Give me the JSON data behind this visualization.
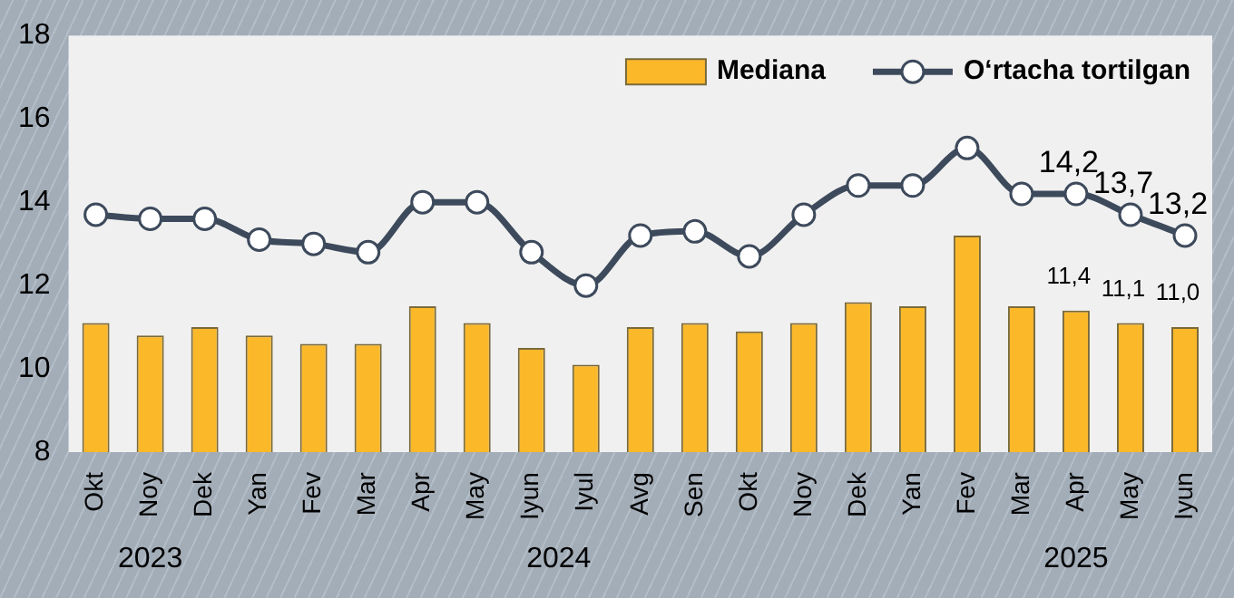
{
  "chart_data": {
    "type": "bar",
    "categories": [
      "Okt",
      "Noy",
      "Dek",
      "Yan",
      "Fev",
      "Mar",
      "Apr",
      "May",
      "Iyun",
      "Iyul",
      "Avg",
      "Sen",
      "Okt",
      "Noy",
      "Dek",
      "Yan",
      "Fev",
      "Mar",
      "Apr",
      "May",
      "Iyun"
    ],
    "series": [
      {
        "name": "Mediana",
        "color": "#fbb829",
        "values": [
          11.1,
          10.8,
          11.0,
          10.8,
          10.6,
          10.6,
          11.5,
          11.1,
          10.5,
          10.1,
          11.0,
          11.1,
          10.9,
          11.1,
          11.6,
          11.5,
          13.2,
          11.5,
          11.4,
          11.1,
          11.0
        ],
        "value_labels": [
          null,
          null,
          null,
          null,
          null,
          null,
          null,
          null,
          null,
          null,
          null,
          null,
          null,
          null,
          null,
          null,
          null,
          null,
          "11,4",
          "11,1",
          "11,0"
        ]
      },
      {
        "name": "O‘rtacha tortilgan",
        "type": "line",
        "color": "#3d4a5c",
        "values": [
          13.7,
          13.6,
          13.6,
          13.1,
          13.0,
          12.8,
          14.0,
          14.0,
          12.8,
          12.0,
          13.2,
          13.3,
          12.7,
          13.7,
          14.4,
          14.4,
          15.3,
          14.2,
          14.2,
          13.7,
          13.2
        ],
        "value_labels": [
          null,
          null,
          null,
          null,
          null,
          null,
          null,
          null,
          null,
          null,
          null,
          null,
          null,
          null,
          null,
          null,
          null,
          null,
          "14,2",
          "13,7",
          "13,2"
        ]
      }
    ],
    "ylim": [
      8,
      18
    ],
    "yticks": [
      8,
      10,
      12,
      14,
      16,
      18
    ],
    "grid": false,
    "legend": "top right",
    "marker": "circle",
    "line_style": "solid",
    "annotations": [
      "2023",
      "2024",
      "2025"
    ]
  }
}
